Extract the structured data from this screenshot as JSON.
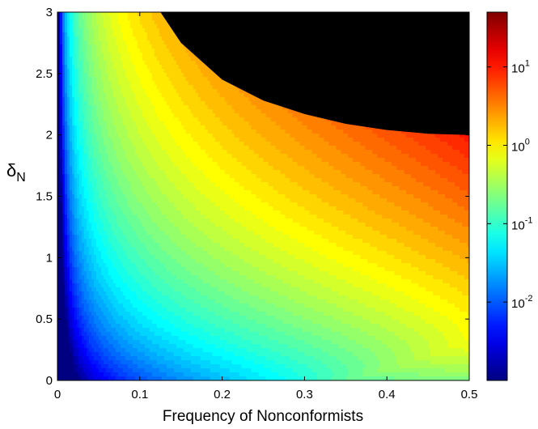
{
  "chart_data": {
    "type": "heatmap",
    "title": "",
    "xlabel": "Frequency of Nonconformists",
    "ylabel": {
      "symbol": "δ",
      "subscript": "N"
    },
    "xlim": [
      0,
      0.5
    ],
    "ylim": [
      0,
      3
    ],
    "x_ticks": [
      "0",
      "0.1",
      "0.2",
      "0.3",
      "0.4",
      "0.5"
    ],
    "y_ticks": [
      "0",
      "0.5",
      "1",
      "1.5",
      "2",
      "2.5",
      "3"
    ],
    "colormap": "jet",
    "color_scale": "log",
    "colorbar": {
      "range": [
        0.001,
        50
      ],
      "ticks": [
        {
          "base": "10",
          "exp": "-2"
        },
        {
          "base": "10",
          "exp": "-1"
        },
        {
          "base": "10",
          "exp": "0"
        },
        {
          "base": "10",
          "exp": "1"
        }
      ]
    },
    "undefined_region": {
      "color": "#000000",
      "boundary_delta_N_at_x": [
        {
          "x": 0.125,
          "y": 3.0
        },
        {
          "x": 0.15,
          "y": 2.75
        },
        {
          "x": 0.2,
          "y": 2.45
        },
        {
          "x": 0.25,
          "y": 2.28
        },
        {
          "x": 0.3,
          "y": 2.17
        },
        {
          "x": 0.35,
          "y": 2.09
        },
        {
          "x": 0.4,
          "y": 2.04
        },
        {
          "x": 0.45,
          "y": 2.01
        },
        {
          "x": 0.5,
          "y": 2.0
        }
      ]
    },
    "grid": false,
    "legend": "colorbar-right"
  }
}
